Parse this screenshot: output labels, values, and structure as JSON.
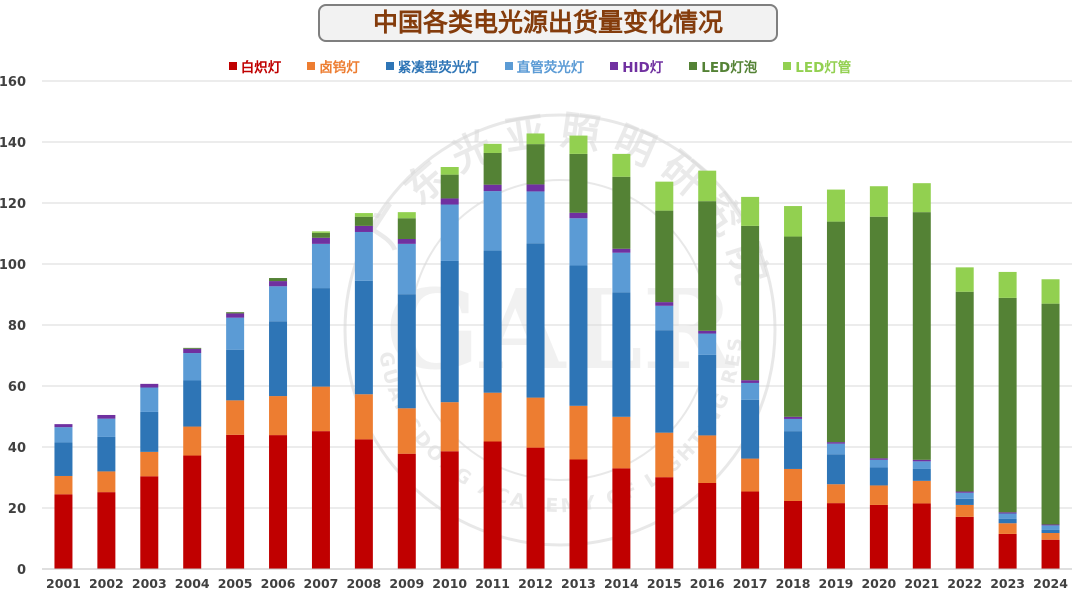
{
  "title": "中国各类电光源出货量变化情况",
  "watermark": {
    "cn": "广东光亚照明研究院",
    "en": "GUANGDONG ACADEMY OF LIGHTING RESEARCH",
    "abbr": "GALR"
  },
  "chart_data": {
    "type": "bar",
    "stacked": true,
    "title": "中国各类电光源出货量变化情况",
    "xlabel": "",
    "ylabel": "",
    "ylim": [
      0,
      160
    ],
    "yticks": [
      0,
      20,
      40,
      60,
      80,
      100,
      120,
      140,
      160
    ],
    "grid": true,
    "legend_position": "top",
    "categories": [
      "2001",
      "2002",
      "2003",
      "2004",
      "2005",
      "2006",
      "2007",
      "2008",
      "2009",
      "2010",
      "2011",
      "2012",
      "2013",
      "2014",
      "2015",
      "2016",
      "2017",
      "2018",
      "2019",
      "2020",
      "2021",
      "2022",
      "2023",
      "2024"
    ],
    "series": [
      {
        "name": "白炽灯",
        "color": "#c00000",
        "values": [
          24.5,
          25.2,
          30.4,
          37.2,
          44.0,
          43.9,
          45.2,
          42.5,
          37.8,
          38.6,
          41.8,
          39.8,
          35.9,
          33.0,
          30.1,
          28.2,
          25.4,
          22.3,
          21.6,
          21.0,
          21.5,
          17.1,
          11.5,
          9.6
        ]
      },
      {
        "name": "卤钨灯",
        "color": "#ed7d31",
        "values": [
          6.0,
          6.8,
          8.0,
          9.5,
          11.3,
          12.8,
          14.6,
          14.8,
          14.9,
          16.1,
          16.0,
          16.4,
          17.6,
          16.9,
          14.6,
          15.6,
          10.8,
          10.5,
          6.2,
          6.4,
          7.4,
          3.9,
          3.5,
          2.2
        ]
      },
      {
        "name": "紧凑型荧光灯",
        "color": "#2e75b6",
        "values": [
          11.0,
          11.3,
          13.1,
          15.1,
          16.6,
          24.5,
          32.3,
          37.2,
          37.4,
          46.3,
          46.6,
          50.6,
          46.0,
          40.8,
          33.6,
          26.4,
          19.3,
          12.4,
          9.8,
          5.9,
          3.9,
          2.0,
          1.5,
          1.0
        ]
      },
      {
        "name": "直管荧光灯",
        "color": "#5b9bd5",
        "values": [
          5.0,
          6.0,
          8.0,
          9.0,
          10.5,
          11.5,
          14.5,
          16.0,
          16.5,
          18.5,
          19.5,
          17.0,
          15.5,
          13.0,
          8.0,
          7.0,
          5.5,
          4.0,
          3.5,
          2.5,
          2.5,
          2.0,
          1.7,
          1.5
        ]
      },
      {
        "name": "HID灯",
        "color": "#7030a0",
        "values": [
          1.0,
          1.2,
          1.2,
          1.4,
          1.4,
          1.7,
          2.0,
          2.0,
          1.6,
          2.0,
          2.1,
          2.3,
          1.8,
          1.3,
          1.2,
          0.9,
          0.9,
          0.7,
          0.5,
          0.5,
          0.5,
          0.4,
          0.4,
          0.3
        ]
      },
      {
        "name": "LED灯泡",
        "color": "#548235",
        "values": [
          0,
          0,
          0,
          0.3,
          0.4,
          1.0,
          1.6,
          3.0,
          6.8,
          7.8,
          10.4,
          13.2,
          19.3,
          23.6,
          30.0,
          42.5,
          50.6,
          59.1,
          72.3,
          79.2,
          81.2,
          65.5,
          70.3,
          72.4
        ]
      },
      {
        "name": "LED灯管",
        "color": "#92d050",
        "values": [
          0,
          0,
          0,
          0,
          0,
          0,
          0.5,
          1.2,
          2.0,
          2.5,
          3.0,
          3.5,
          6.0,
          7.5,
          9.5,
          10.0,
          9.5,
          10.0,
          10.5,
          10.0,
          9.5,
          8.0,
          8.5,
          8.0
        ]
      }
    ]
  }
}
